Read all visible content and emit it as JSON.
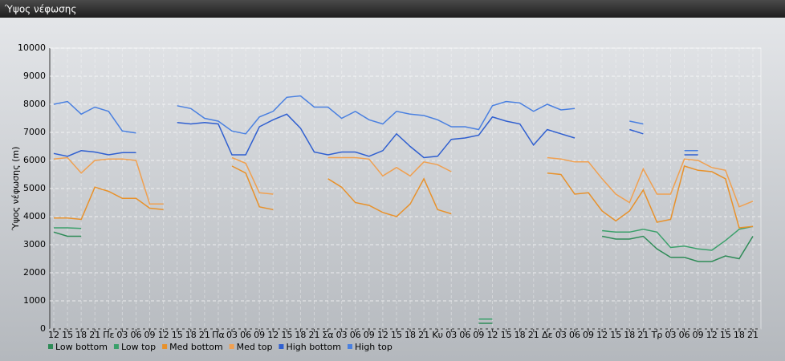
{
  "chart_data": {
    "type": "line",
    "title": "Ύψος νέφωσης",
    "y_label": "Ύψος νέφωσης (m)",
    "categories": [
      "12",
      "15",
      "18",
      "21",
      "Πε",
      "03",
      "06",
      "09",
      "12",
      "15",
      "18",
      "21",
      "Πα",
      "03",
      "06",
      "09",
      "12",
      "15",
      "18",
      "21",
      "Σα",
      "03",
      "06",
      "09",
      "12",
      "15",
      "18",
      "21",
      "Κυ",
      "03",
      "06",
      "09",
      "12",
      "15",
      "18",
      "21",
      "Δε",
      "03",
      "06",
      "09",
      "12",
      "15",
      "18",
      "21",
      "Τρ",
      "03",
      "06",
      "09",
      "12",
      "15",
      "18",
      "21"
    ],
    "ylim": [
      0,
      10000
    ],
    "yticks": [
      0,
      1000,
      2000,
      3000,
      4000,
      5000,
      6000,
      7000,
      8000,
      9000,
      10000
    ],
    "grid": true,
    "series": [
      {
        "name": "Low bottom",
        "color": "#2e8b57",
        "values": [
          3450,
          3300,
          3300,
          null,
          null,
          null,
          null,
          null,
          null,
          null,
          null,
          null,
          null,
          null,
          null,
          null,
          null,
          null,
          null,
          null,
          null,
          null,
          null,
          null,
          null,
          null,
          null,
          null,
          null,
          null,
          null,
          200,
          200,
          null,
          null,
          null,
          null,
          null,
          null,
          null,
          3300,
          3200,
          3200,
          3300,
          2850,
          2550,
          2550,
          2400,
          2400,
          2600,
          2500,
          3300
        ]
      },
      {
        "name": "Low top",
        "color": "#3aa06a",
        "values": [
          3600,
          3600,
          3580,
          null,
          null,
          null,
          null,
          null,
          null,
          null,
          null,
          null,
          null,
          null,
          null,
          null,
          null,
          null,
          null,
          null,
          null,
          null,
          null,
          null,
          null,
          null,
          null,
          null,
          null,
          null,
          null,
          350,
          350,
          null,
          null,
          null,
          null,
          null,
          null,
          null,
          3500,
          3450,
          3450,
          3550,
          3450,
          2900,
          2950,
          2850,
          2800,
          3150,
          3550,
          3650
        ]
      },
      {
        "name": "Med bottom",
        "color": "#e8912a",
        "values": [
          3950,
          3950,
          3900,
          5050,
          4900,
          4650,
          4650,
          4300,
          4250,
          null,
          null,
          null,
          null,
          5800,
          5550,
          4350,
          4250,
          null,
          null,
          null,
          5350,
          5050,
          4500,
          4400,
          4150,
          4000,
          4450,
          5350,
          4250,
          4100,
          null,
          null,
          null,
          null,
          null,
          null,
          5550,
          5500,
          4800,
          4850,
          4200,
          3850,
          4200,
          4950,
          3800,
          3900,
          5800,
          5650,
          5600,
          5350,
          3600,
          3650
        ]
      },
      {
        "name": "Med top",
        "color": "#f0a050",
        "values": [
          6050,
          6100,
          5550,
          6000,
          6050,
          6050,
          6000,
          4450,
          4450,
          null,
          null,
          null,
          null,
          6100,
          5900,
          4850,
          4800,
          null,
          null,
          null,
          6100,
          6100,
          6100,
          6050,
          5450,
          5750,
          5450,
          5950,
          5850,
          5600,
          null,
          null,
          null,
          null,
          null,
          null,
          6100,
          6050,
          5950,
          5950,
          5350,
          4800,
          4500,
          5700,
          4800,
          4800,
          6050,
          6000,
          5750,
          5650,
          4350,
          4550
        ]
      },
      {
        "name": "High bottom",
        "color": "#2f5fd0",
        "values": [
          6250,
          6150,
          6350,
          6300,
          6200,
          6280,
          6280,
          null,
          null,
          7350,
          7300,
          7350,
          7300,
          6200,
          6200,
          7200,
          7450,
          7650,
          7150,
          6300,
          6200,
          6300,
          6300,
          6150,
          6350,
          6950,
          6500,
          6100,
          6150,
          6750,
          6800,
          6900,
          7550,
          7400,
          7300,
          6550,
          7100,
          6950,
          6800,
          null,
          null,
          null,
          7100,
          6950,
          null,
          null,
          6200,
          6200,
          null,
          null,
          null,
          null
        ]
      },
      {
        "name": "High top",
        "color": "#4a80e0",
        "values": [
          8000,
          8100,
          7650,
          7900,
          7750,
          7050,
          6980,
          null,
          null,
          7950,
          7850,
          7500,
          7400,
          7050,
          6950,
          7550,
          7750,
          8250,
          8300,
          7900,
          7900,
          7500,
          7750,
          7450,
          7300,
          7750,
          7650,
          7600,
          7450,
          7200,
          7200,
          7100,
          7950,
          8100,
          8050,
          7750,
          8000,
          7800,
          7850,
          null,
          null,
          null,
          7400,
          7300,
          null,
          null,
          6350,
          6350,
          null,
          null,
          null,
          null
        ]
      }
    ]
  }
}
